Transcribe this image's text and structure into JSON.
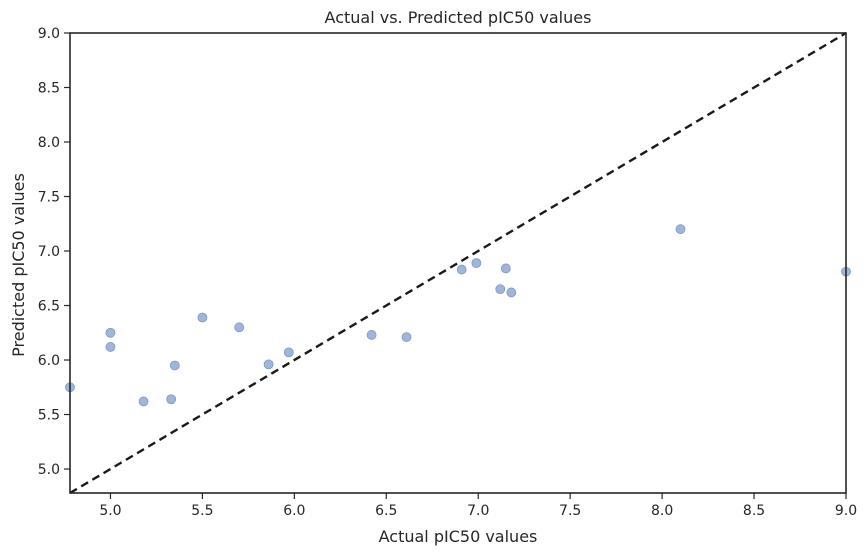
{
  "chart_data": {
    "type": "scatter",
    "title": "Actual vs. Predicted pIC50 values",
    "xlabel": "Actual pIC50 values",
    "ylabel": "Predicted pIC50 values",
    "xlim": [
      4.78,
      9.0
    ],
    "ylim": [
      4.78,
      9.0
    ],
    "grid": false,
    "x_ticks": [
      "5.0",
      "5.5",
      "6.0",
      "6.5",
      "7.0",
      "7.5",
      "8.0",
      "8.5",
      "9.0"
    ],
    "y_ticks": [
      "5.0",
      "5.5",
      "6.0",
      "6.5",
      "7.0",
      "7.5",
      "8.0",
      "8.5",
      "9.0"
    ],
    "series": [
      {
        "x": [
          4.78,
          5.0,
          5.0,
          5.18,
          5.33,
          5.35,
          5.5,
          5.7,
          5.86,
          5.97,
          6.42,
          6.61,
          6.91,
          6.99,
          7.12,
          7.15,
          7.18,
          8.1,
          9.0
        ],
        "y": [
          5.75,
          6.25,
          6.12,
          5.62,
          5.64,
          5.95,
          6.39,
          6.3,
          5.96,
          6.07,
          6.23,
          6.21,
          6.83,
          6.89,
          6.65,
          6.84,
          6.62,
          7.2,
          6.81
        ]
      }
    ],
    "reference_line": {
      "style": "dashed",
      "from": [
        4.78,
        4.78
      ],
      "to": [
        9.0,
        9.0
      ]
    },
    "colors": {
      "points": "#8fa8d0",
      "point_edge": "#7f98c4",
      "line": "#1a1a1a",
      "axis": "#262626"
    }
  }
}
